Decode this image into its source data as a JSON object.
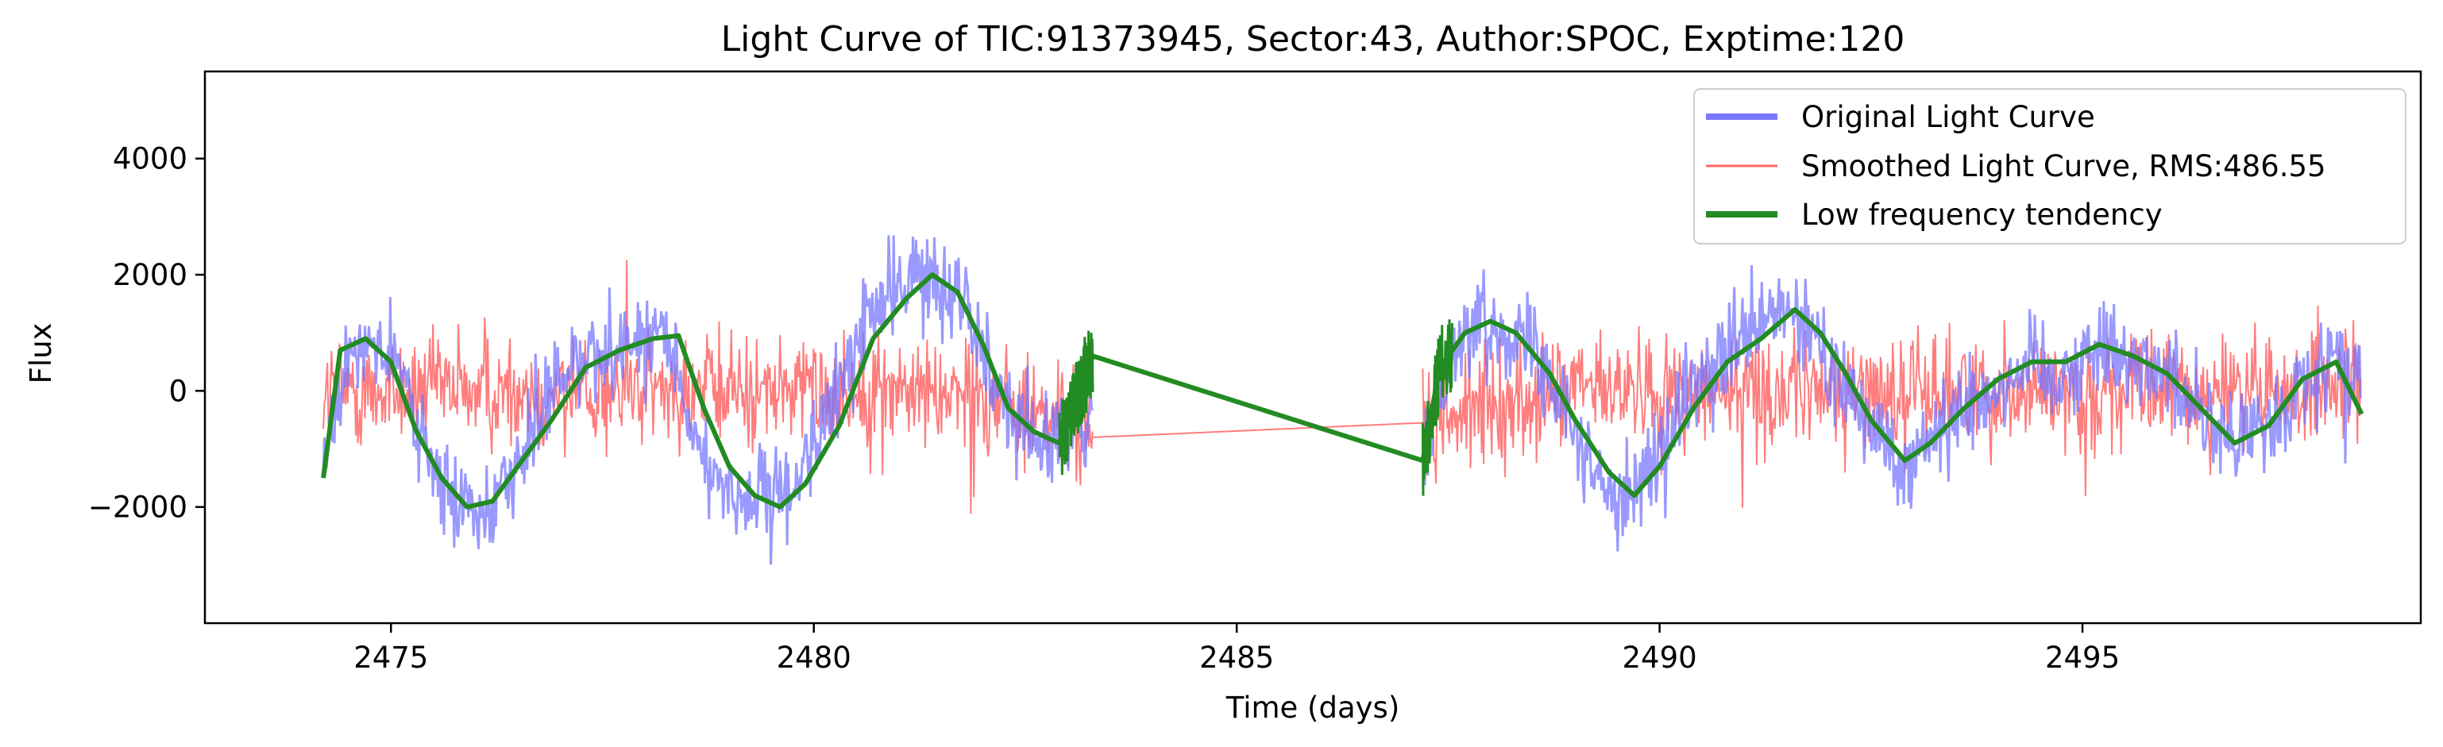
{
  "chart_data": {
    "type": "line",
    "title": "Light Curve of TIC:91373945, Sector:43, Author:SPOC, Exptime:120",
    "xlabel": "Time (days)",
    "ylabel": "Flux",
    "xlim": [
      2472.8,
      2499.0
    ],
    "ylim": [
      -4000,
      5500
    ],
    "xticks": [
      2475,
      2480,
      2485,
      2490,
      2495
    ],
    "yticks": [
      -2000,
      0,
      2000,
      4000
    ],
    "ytick_labels": [
      "−2000",
      "0",
      "2000",
      "4000"
    ],
    "grid": false,
    "legend_position": "top-right",
    "gap": [
      2483.3,
      2487.2
    ],
    "series": [
      {
        "name": "Original Light Curve",
        "color": "#7777ff",
        "x": [
          2474.2,
          2474.5,
          2474.8,
          2475.1,
          2475.5,
          2475.8,
          2476.1,
          2476.5,
          2476.8,
          2477.2,
          2477.5,
          2477.9,
          2478.2,
          2478.5,
          2478.8,
          2479.2,
          2479.5,
          2479.8,
          2480.2,
          2480.6,
          2481.0,
          2481.4,
          2481.8,
          2482.1,
          2482.4,
          2482.7,
          2483.0,
          2483.3,
          2487.2,
          2487.5,
          2487.8,
          2488.1,
          2488.5,
          2488.9,
          2489.2,
          2489.6,
          2490.0,
          2490.3,
          2490.7,
          2491.1,
          2491.5,
          2491.8,
          2492.1,
          2492.5,
          2492.9,
          2493.2,
          2493.6,
          2494.0,
          2494.4,
          2494.8,
          2495.2,
          2495.6,
          2496.0,
          2496.4,
          2496.8,
          2497.2,
          2497.6,
          2498.0,
          2498.3
        ],
        "y": [
          -1500,
          800,
          900,
          300,
          -1500,
          -2000,
          -1900,
          -1300,
          -300,
          600,
          700,
          900,
          1000,
          -500,
          -1500,
          -1900,
          -2000,
          -1500,
          -300,
          1200,
          1800,
          2000,
          1600,
          400,
          -600,
          -900,
          -700,
          -800,
          -1200,
          600,
          1100,
          1200,
          800,
          -200,
          -1500,
          -1800,
          -1200,
          -200,
          500,
          1000,
          1400,
          900,
          200,
          -600,
          -1200,
          -800,
          -300,
          100,
          500,
          300,
          800,
          600,
          300,
          -300,
          -900,
          -700,
          100,
          500,
          400
        ]
      },
      {
        "name": "Smoothed Light Curve, RMS:486.55",
        "color": "#ff6666",
        "x": [
          2474.2,
          2476.0,
          2478.0,
          2480.0,
          2482.0,
          2483.3,
          2487.2,
          2489.0,
          2491.0,
          2493.0,
          2495.0,
          2497.0,
          2498.3
        ],
        "y": [
          0,
          0,
          0,
          0,
          0,
          -800,
          -550,
          0,
          0,
          0,
          0,
          0,
          0
        ]
      },
      {
        "name": "Low frequency tendency",
        "color": "#228b22",
        "x": [
          2474.2,
          2474.4,
          2474.7,
          2475.0,
          2475.3,
          2475.6,
          2475.9,
          2476.2,
          2476.5,
          2476.9,
          2477.3,
          2477.7,
          2478.1,
          2478.4,
          2478.7,
          2479.0,
          2479.3,
          2479.6,
          2479.9,
          2480.3,
          2480.7,
          2481.1,
          2481.4,
          2481.7,
          2482.0,
          2482.3,
          2482.6,
          2482.9,
          2483.3,
          2487.2,
          2487.4,
          2487.7,
          2488.0,
          2488.3,
          2488.7,
          2489.0,
          2489.4,
          2489.7,
          2490.0,
          2490.4,
          2490.8,
          2491.2,
          2491.6,
          2491.9,
          2492.2,
          2492.5,
          2492.9,
          2493.2,
          2493.6,
          2494.0,
          2494.4,
          2494.8,
          2495.2,
          2495.6,
          2496.0,
          2496.4,
          2496.8,
          2497.2,
          2497.6,
          2498.0,
          2498.3
        ],
        "y": [
          -1500,
          700,
          900,
          500,
          -700,
          -1500,
          -2000,
          -1900,
          -1300,
          -500,
          400,
          700,
          900,
          950,
          -300,
          -1300,
          -1800,
          -2000,
          -1600,
          -600,
          900,
          1600,
          2000,
          1700,
          800,
          -300,
          -700,
          -900,
          600,
          -1200,
          400,
          1000,
          1200,
          1000,
          300,
          -500,
          -1400,
          -1800,
          -1300,
          -300,
          500,
          900,
          1400,
          1000,
          300,
          -500,
          -1200,
          -900,
          -300,
          200,
          500,
          500,
          800,
          600,
          300,
          -300,
          -900,
          -600,
          200,
          500,
          -400
        ]
      }
    ]
  }
}
